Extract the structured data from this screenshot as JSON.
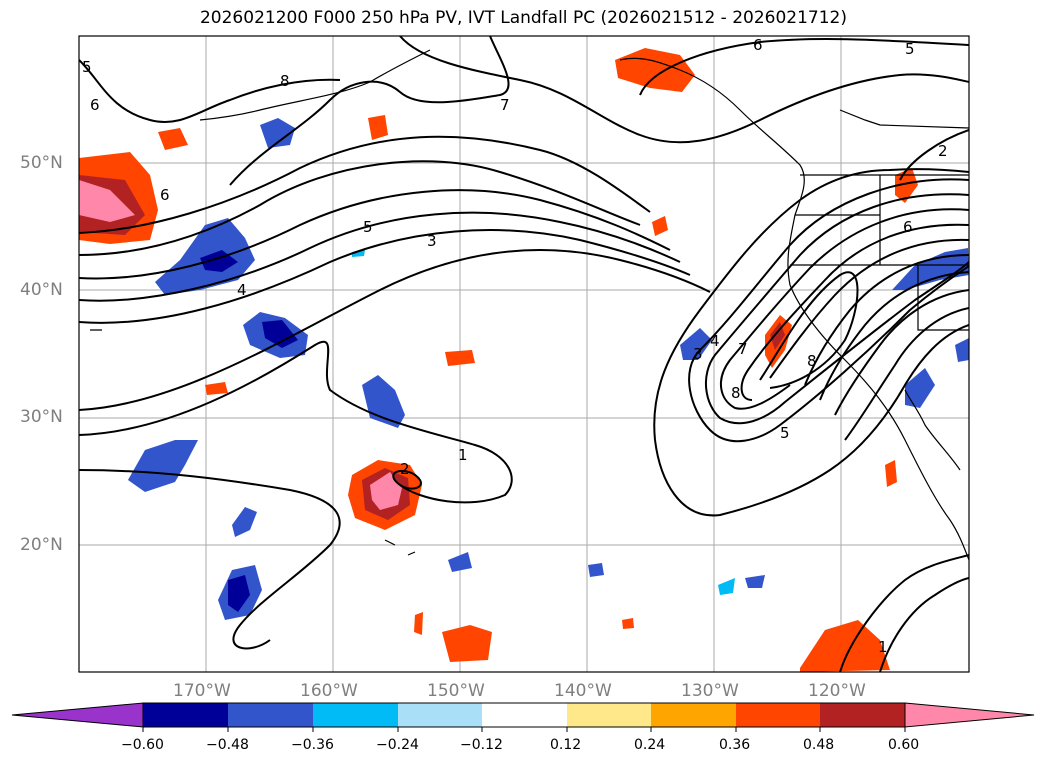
{
  "title": "2026021200 F000 250 hPa PV, IVT Landfall PC (2026021512 - 2026021712)",
  "lat_labels": [
    "50°N",
    "40°N",
    "30°N",
    "20°N"
  ],
  "lon_labels": [
    "170°W",
    "160°W",
    "150°W",
    "140°W",
    "130°W",
    "120°W"
  ],
  "contour_labels": [
    "5",
    "6",
    "8",
    "7",
    "6",
    "5",
    "2",
    "6",
    "5",
    "3",
    "4",
    "6",
    "1",
    "2",
    "3",
    "4",
    "7",
    "8",
    "8",
    "5",
    "1"
  ],
  "colorbar": {
    "ticks": [
      "−0.60",
      "−0.48",
      "−0.36",
      "−0.24",
      "−0.12",
      "0.12",
      "0.24",
      "0.36",
      "0.48",
      "0.60"
    ],
    "colors": [
      "#9933cc",
      "#000099",
      "#3355cc",
      "#00bbf5",
      "#aadff8",
      "#ffffff",
      "#ffe88a",
      "#ffa500",
      "#ff4500",
      "#b22222",
      "#ff88aa"
    ]
  }
}
